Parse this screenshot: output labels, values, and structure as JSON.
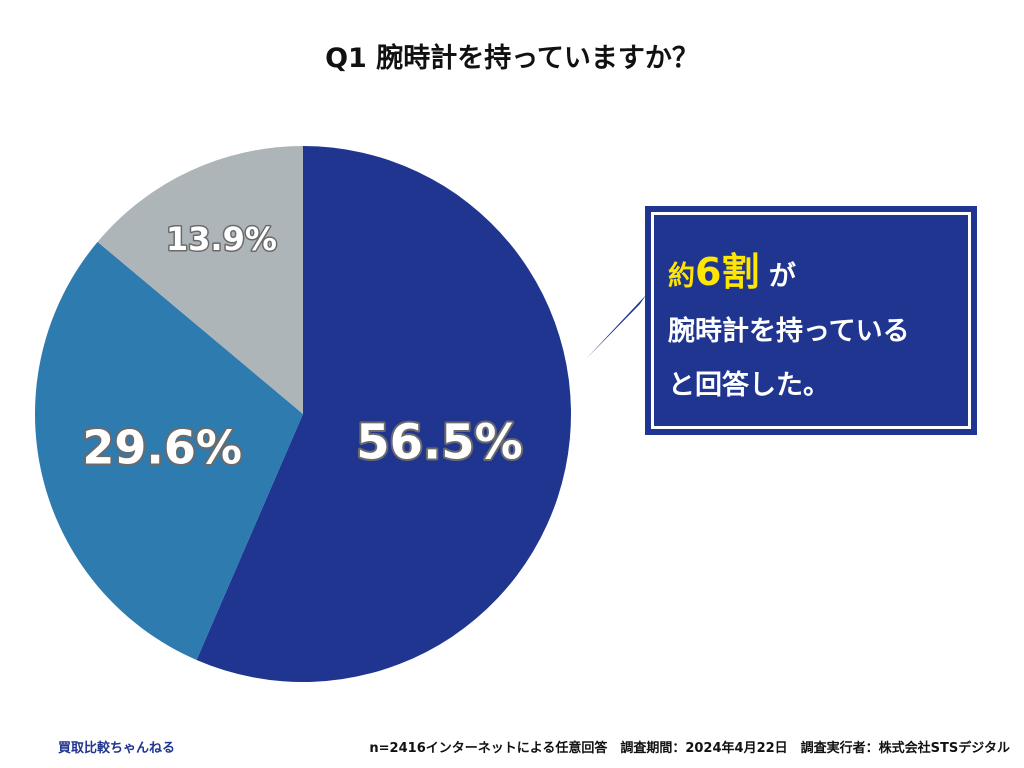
{
  "chart_data": {
    "type": "pie",
    "title": "Q1 腕時計を持っていますか？",
    "slices": [
      {
        "label": "56.5%",
        "value": 56.5,
        "color": "#1f3590"
      },
      {
        "label": "29.6%",
        "value": 29.6,
        "color": "#2e7bb0"
      },
      {
        "label": "13.9%",
        "value": 13.9,
        "color": "#adb5b8"
      }
    ],
    "start": "12 o'clock",
    "direction": "clockwise"
  },
  "callout": {
    "line1_prefix": "約",
    "line1_number": "6割",
    "line1_suffix": "が",
    "line2": "腕時計を持っている",
    "line3": "と回答した。",
    "background_color": "#1f3590",
    "highlight_color": "#ffe600"
  },
  "footer": {
    "brand": "買取比較ちゃんねる",
    "note": "n=2416インターネットによる任意回答　調査期間：2024年4月22日　調査実行者：株式会社STSデジタル"
  }
}
